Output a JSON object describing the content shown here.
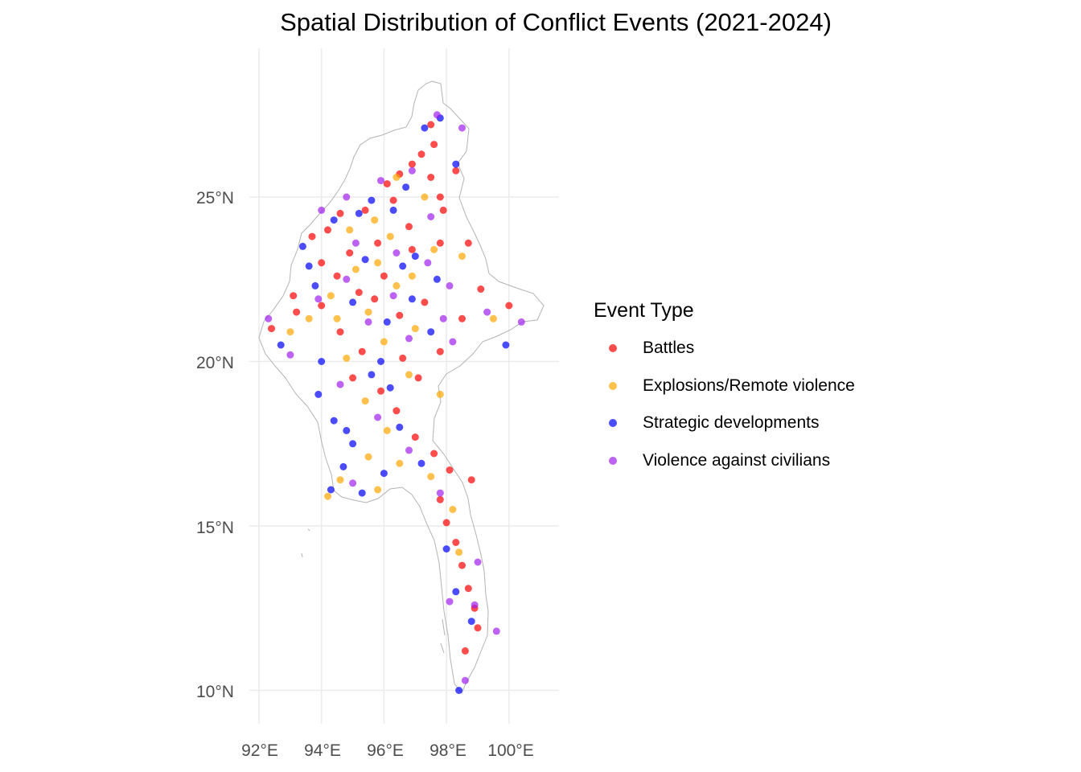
{
  "title": "Spatial Distribution of Conflict Events (2021-2024)",
  "axes": {
    "x_ticks": [
      "92°E",
      "94°E",
      "96°E",
      "98°E",
      "100°E"
    ],
    "y_ticks": [
      "25°N",
      "20°N",
      "15°N",
      "10°N"
    ]
  },
  "legend": {
    "title": "Event Type",
    "items": [
      {
        "label": "Battles",
        "color": "#ff0000"
      },
      {
        "label": "Explosions/Remote violence",
        "color": "#ffa500"
      },
      {
        "label": "Strategic developments",
        "color": "#0000ff"
      },
      {
        "label": "Violence against civilians",
        "color": "#a020f0"
      }
    ]
  },
  "chart_data": {
    "type": "scatter",
    "title": "Spatial Distribution of Conflict Events (2021-2024)",
    "xlabel": "",
    "ylabel": "",
    "xlim": [
      91.8,
      101.4
    ],
    "ylim": [
      9.5,
      29.0
    ],
    "x_ticks": [
      92,
      94,
      96,
      98,
      100
    ],
    "y_ticks": [
      10,
      15,
      20,
      25
    ],
    "grid": true,
    "legend_position": "right",
    "series": [
      {
        "name": "Battles",
        "color": "#ff0000",
        "points": [
          [
            97.5,
            27.2
          ],
          [
            97.6,
            26.6
          ],
          [
            97.2,
            26.3
          ],
          [
            96.9,
            26.0
          ],
          [
            96.5,
            25.7
          ],
          [
            96.1,
            25.4
          ],
          [
            97.5,
            25.6
          ],
          [
            97.8,
            25.0
          ],
          [
            98.3,
            25.8
          ],
          [
            96.3,
            24.9
          ],
          [
            95.4,
            24.6
          ],
          [
            94.6,
            24.5
          ],
          [
            94.2,
            24.0
          ],
          [
            93.7,
            23.8
          ],
          [
            94.9,
            23.3
          ],
          [
            95.8,
            23.6
          ],
          [
            96.9,
            23.4
          ],
          [
            97.8,
            23.6
          ],
          [
            98.7,
            23.6
          ],
          [
            96.0,
            22.6
          ],
          [
            95.2,
            22.1
          ],
          [
            94.0,
            21.7
          ],
          [
            93.2,
            21.5
          ],
          [
            92.4,
            21.0
          ],
          [
            95.7,
            21.9
          ],
          [
            96.5,
            21.4
          ],
          [
            97.3,
            21.8
          ],
          [
            98.5,
            21.3
          ],
          [
            94.6,
            20.9
          ],
          [
            95.3,
            20.3
          ],
          [
            96.6,
            20.1
          ],
          [
            97.1,
            19.5
          ],
          [
            95.9,
            19.1
          ],
          [
            96.4,
            18.5
          ],
          [
            97.0,
            17.7
          ],
          [
            97.6,
            17.2
          ],
          [
            98.1,
            16.7
          ],
          [
            98.8,
            16.4
          ],
          [
            97.8,
            15.8
          ],
          [
            98.0,
            15.1
          ],
          [
            98.3,
            14.5
          ],
          [
            98.5,
            13.8
          ],
          [
            98.7,
            13.1
          ],
          [
            98.9,
            12.5
          ],
          [
            99.0,
            11.9
          ],
          [
            98.6,
            11.2
          ],
          [
            99.1,
            22.2
          ],
          [
            100.0,
            21.7
          ],
          [
            97.8,
            20.3
          ],
          [
            94.0,
            23.0
          ],
          [
            93.1,
            22.0
          ],
          [
            96.8,
            24.1
          ],
          [
            97.9,
            24.6
          ],
          [
            94.5,
            22.6
          ],
          [
            95.0,
            19.5
          ]
        ]
      },
      {
        "name": "Explosions/Remote violence",
        "color": "#ffa500",
        "points": [
          [
            96.4,
            25.6
          ],
          [
            97.3,
            25.0
          ],
          [
            95.7,
            24.3
          ],
          [
            94.9,
            24.0
          ],
          [
            96.2,
            23.8
          ],
          [
            97.6,
            23.4
          ],
          [
            98.5,
            23.2
          ],
          [
            95.1,
            22.8
          ],
          [
            96.4,
            22.3
          ],
          [
            94.3,
            22.0
          ],
          [
            93.6,
            21.3
          ],
          [
            95.5,
            21.5
          ],
          [
            97.0,
            21.0
          ],
          [
            96.0,
            20.6
          ],
          [
            94.8,
            20.1
          ],
          [
            96.8,
            19.6
          ],
          [
            95.4,
            18.8
          ],
          [
            96.1,
            17.9
          ],
          [
            95.5,
            17.1
          ],
          [
            94.6,
            16.4
          ],
          [
            94.2,
            15.9
          ],
          [
            97.5,
            16.5
          ],
          [
            98.2,
            15.5
          ],
          [
            98.4,
            14.2
          ],
          [
            96.9,
            22.6
          ],
          [
            99.5,
            21.3
          ],
          [
            95.8,
            23.0
          ],
          [
            94.5,
            21.3
          ],
          [
            97.8,
            19.0
          ],
          [
            96.5,
            16.9
          ],
          [
            95.8,
            16.1
          ],
          [
            93.0,
            20.9
          ]
        ]
      },
      {
        "name": "Strategic developments",
        "color": "#0000ff",
        "points": [
          [
            97.8,
            27.4
          ],
          [
            97.3,
            27.1
          ],
          [
            98.3,
            26.0
          ],
          [
            96.7,
            25.3
          ],
          [
            95.6,
            24.9
          ],
          [
            94.4,
            24.3
          ],
          [
            93.4,
            23.5
          ],
          [
            95.4,
            23.1
          ],
          [
            96.6,
            22.9
          ],
          [
            97.7,
            22.5
          ],
          [
            93.8,
            22.3
          ],
          [
            95.0,
            21.8
          ],
          [
            96.1,
            21.2
          ],
          [
            97.5,
            20.9
          ],
          [
            92.7,
            20.5
          ],
          [
            94.0,
            20.0
          ],
          [
            95.6,
            19.6
          ],
          [
            96.2,
            19.2
          ],
          [
            93.9,
            19.0
          ],
          [
            94.4,
            18.2
          ],
          [
            95.0,
            17.5
          ],
          [
            94.7,
            16.8
          ],
          [
            95.3,
            16.0
          ],
          [
            94.3,
            16.1
          ],
          [
            96.5,
            18.0
          ],
          [
            97.2,
            16.9
          ],
          [
            98.0,
            14.3
          ],
          [
            98.3,
            13.0
          ],
          [
            98.8,
            12.1
          ],
          [
            98.4,
            10.0
          ],
          [
            99.9,
            20.5
          ],
          [
            95.9,
            20.0
          ],
          [
            96.9,
            21.9
          ],
          [
            93.6,
            22.9
          ],
          [
            95.2,
            24.5
          ],
          [
            96.0,
            16.6
          ],
          [
            94.8,
            17.9
          ],
          [
            97.0,
            23.2
          ],
          [
            96.3,
            24.6
          ]
        ]
      },
      {
        "name": "Violence against civilians",
        "color": "#a020f0",
        "points": [
          [
            97.7,
            27.5
          ],
          [
            98.5,
            27.1
          ],
          [
            96.9,
            25.8
          ],
          [
            95.9,
            25.5
          ],
          [
            94.8,
            25.0
          ],
          [
            94.0,
            24.6
          ],
          [
            95.1,
            23.6
          ],
          [
            96.4,
            23.3
          ],
          [
            97.4,
            23.0
          ],
          [
            98.1,
            22.3
          ],
          [
            94.8,
            22.5
          ],
          [
            93.9,
            21.9
          ],
          [
            95.5,
            21.2
          ],
          [
            96.8,
            20.7
          ],
          [
            98.2,
            20.6
          ],
          [
            99.3,
            21.5
          ],
          [
            100.4,
            21.2
          ],
          [
            92.3,
            21.3
          ],
          [
            93.0,
            20.2
          ],
          [
            94.6,
            19.3
          ],
          [
            95.8,
            18.3
          ],
          [
            96.8,
            17.3
          ],
          [
            95.0,
            16.3
          ],
          [
            97.8,
            16.0
          ],
          [
            98.1,
            12.7
          ],
          [
            98.9,
            12.6
          ],
          [
            99.6,
            11.8
          ],
          [
            98.6,
            10.3
          ],
          [
            99.0,
            13.9
          ],
          [
            97.9,
            21.3
          ],
          [
            96.3,
            22.0
          ],
          [
            97.5,
            24.4
          ]
        ]
      }
    ]
  }
}
